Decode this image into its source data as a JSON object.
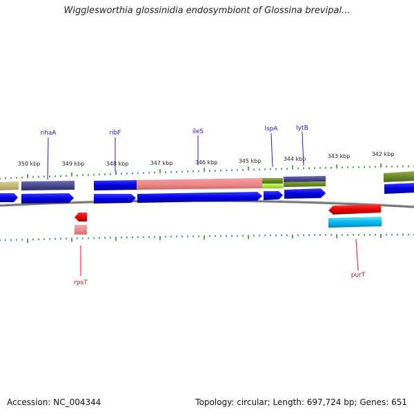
{
  "title": "Wigglesworthia glossinidia endosymbiont of Glossina brevipal...",
  "footer": {
    "accession": "Accession: NC_004344",
    "summary": "Topology: circular; Length: 697,724 bp; Genes: 651"
  },
  "colors": {
    "forward_label": "#1a1acc",
    "reverse_label": "#d41111",
    "tick": "#2e8b2e"
  },
  "scale_labels": [
    "350 kbp",
    "349 kbp",
    "348 kbp",
    "347 kbp",
    "346 kbp",
    "345 kbp",
    "344 kbp",
    "343 kbp",
    "342 kbp"
  ],
  "forward_gene_labels": [
    "nhaA",
    "ribF",
    "ileS",
    "lspA",
    "lytB"
  ],
  "reverse_gene_labels": [
    "rpsT",
    "purT"
  ]
}
